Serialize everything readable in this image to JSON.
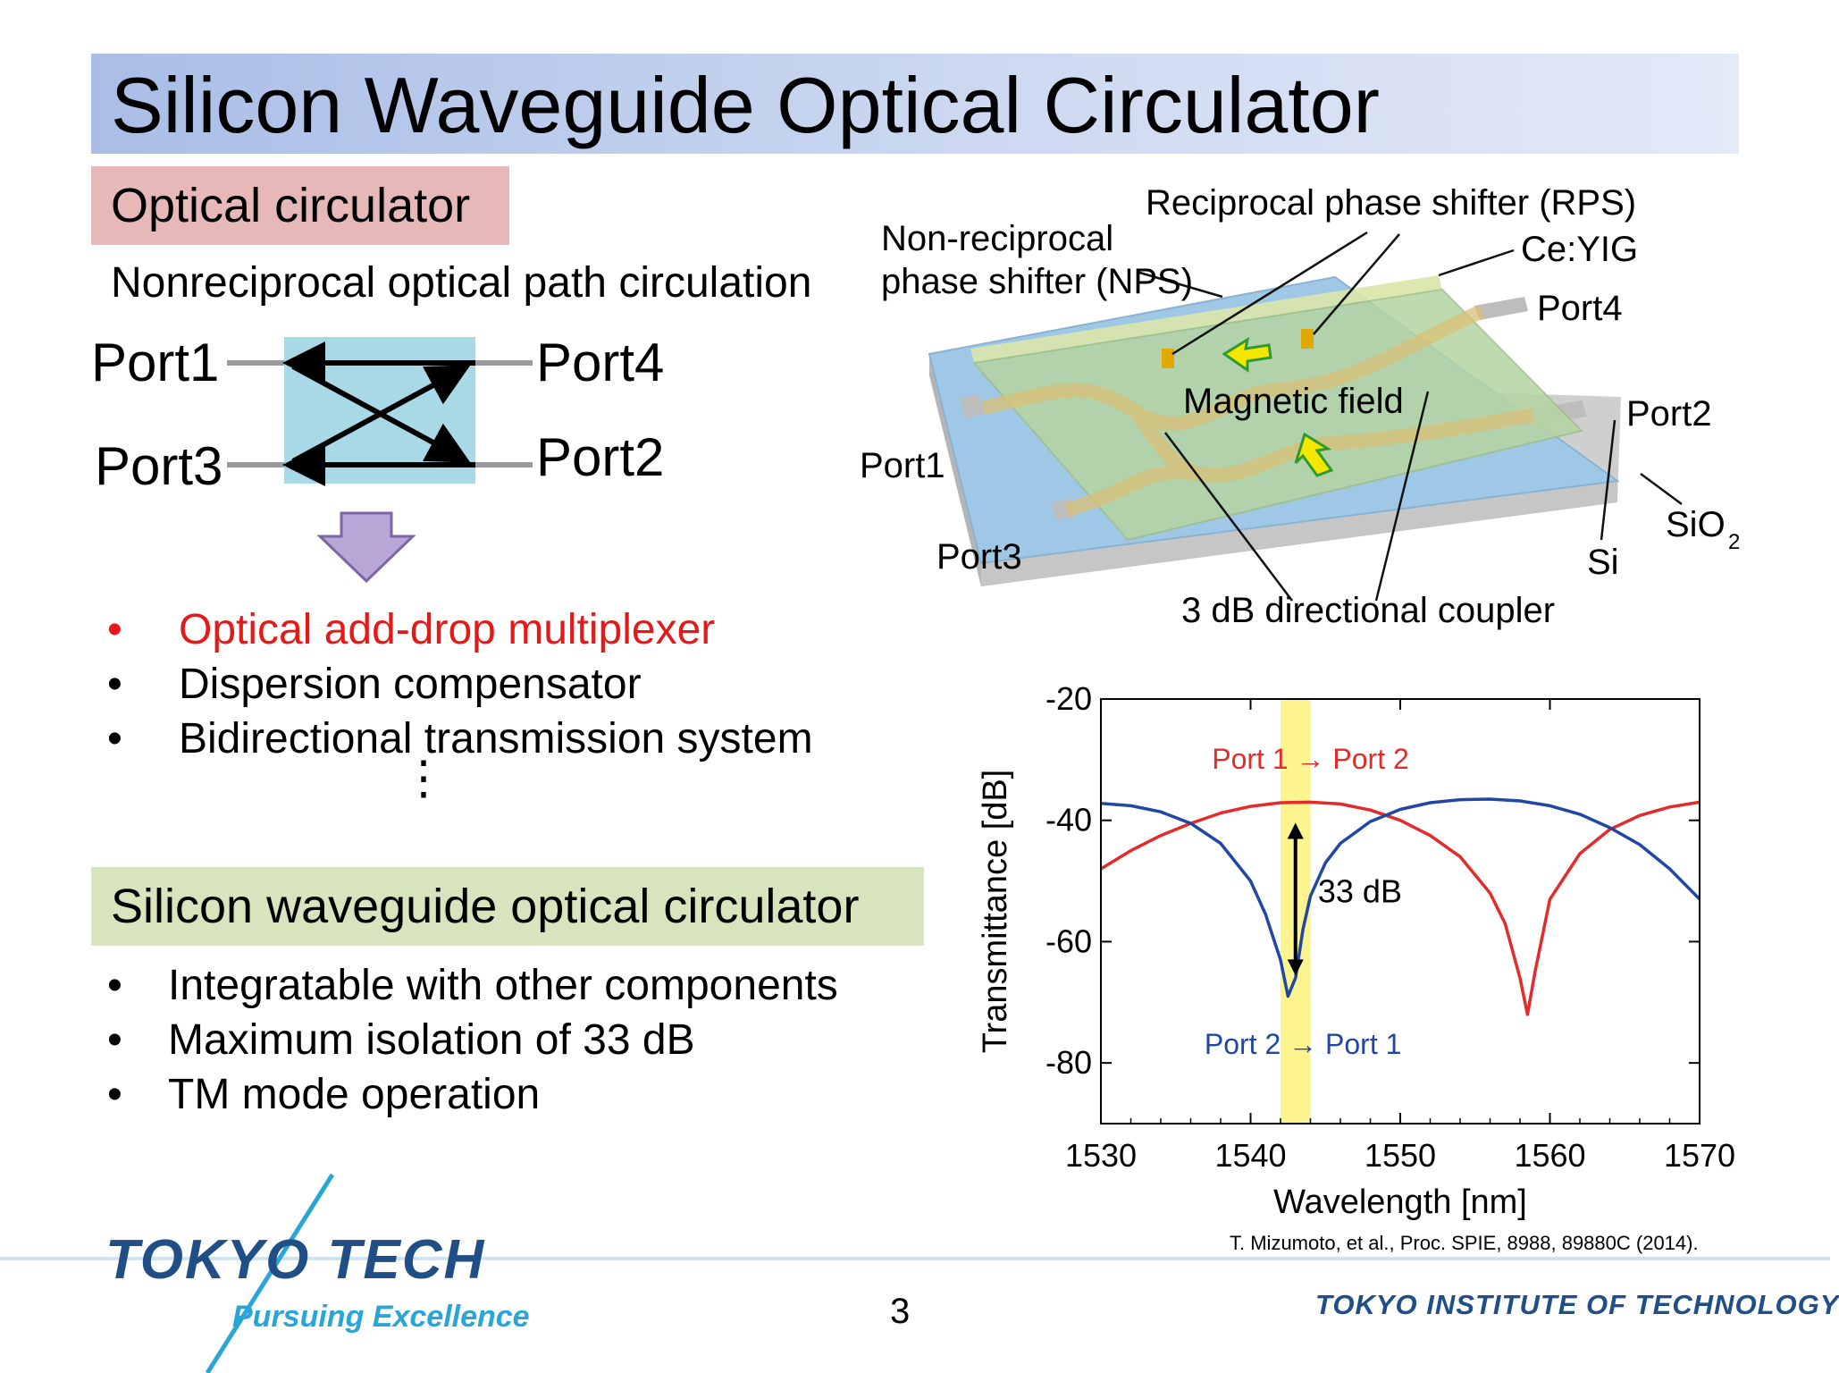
{
  "slide": {
    "title": "Silicon Waveguide Optical Circulator",
    "page_number": "3",
    "reference": "T. Mizumoto, et al., Proc. SPIE, 8988, 89880C (2014)."
  },
  "section1": {
    "heading": "Optical circulator",
    "subtitle": "Nonreciprocal optical path circulation",
    "ports": {
      "p1": "Port1",
      "p2": "Port2",
      "p3": "Port3",
      "p4": "Port4"
    },
    "applications": [
      {
        "text": "Optical add-drop multiplexer",
        "highlight": true
      },
      {
        "text": "Dispersion compensator",
        "highlight": false
      },
      {
        "text": "Bidirectional transmission system",
        "highlight": false
      }
    ],
    "bullet_symbol": "•",
    "ellipsis": "⋮"
  },
  "section2": {
    "heading": "Silicon waveguide optical circulator",
    "features": [
      "Integratable with other components",
      "Maximum isolation of 33 dB",
      "TM mode operation"
    ]
  },
  "device_diagram": {
    "labels": {
      "rps": "Reciprocal phase shifter (RPS)",
      "nps_line1": "Non-reciprocal",
      "nps_line2": "phase shifter (NPS)",
      "ceyig": "Ce:YIG",
      "port4": "Port4",
      "port2": "Port2",
      "port1": "Port1",
      "port3": "Port3",
      "magnetic_field": "Magnetic field",
      "coupler": "3 dB directional coupler",
      "si": "Si",
      "sio2": "SiO",
      "sio2_sub": "2"
    }
  },
  "chart_data": {
    "type": "line",
    "xlabel": "Wavelength [nm]",
    "ylabel": "Transmittance [dB]",
    "xlim": [
      1530,
      1570
    ],
    "ylim": [
      -90,
      -20
    ],
    "xticks": [
      1530,
      1540,
      1550,
      1560,
      1570
    ],
    "yticks": [
      -20,
      -40,
      -60,
      -80
    ],
    "highlight_band": [
      1542,
      1544
    ],
    "series": [
      {
        "name": "Port 1 → Port 2",
        "color": "#e22b2b",
        "x": [
          1530,
          1532,
          1534,
          1536,
          1538,
          1540,
          1542,
          1544,
          1546,
          1548,
          1550,
          1552,
          1554,
          1556,
          1557,
          1558,
          1558.5,
          1559,
          1560,
          1562,
          1564,
          1566,
          1568,
          1570
        ],
        "y": [
          -48,
          -45,
          -42.5,
          -40.5,
          -38.8,
          -37.7,
          -37.1,
          -37.0,
          -37.3,
          -38.3,
          -40,
          -42.5,
          -46,
          -52,
          -57,
          -66,
          -72,
          -65,
          -53,
          -45.5,
          -41.5,
          -39.2,
          -37.8,
          -37.0
        ]
      },
      {
        "name": "Port 2 → Port 1",
        "color": "#1f47a3",
        "x": [
          1530,
          1532,
          1534,
          1536,
          1538,
          1540,
          1541,
          1542,
          1542.5,
          1543,
          1543.5,
          1544,
          1545,
          1546,
          1548,
          1550,
          1552,
          1554,
          1556,
          1558,
          1560,
          1562,
          1564,
          1566,
          1568,
          1570
        ],
        "y": [
          -37.2,
          -37.6,
          -38.6,
          -40.5,
          -43.8,
          -50,
          -55.5,
          -63,
          -69,
          -66,
          -58,
          -52.5,
          -47,
          -43.8,
          -40.2,
          -38.2,
          -37.1,
          -36.6,
          -36.5,
          -36.8,
          -37.6,
          -39.0,
          -41.2,
          -44,
          -48,
          -53
        ]
      }
    ],
    "annotations": {
      "isolation": "33 dB",
      "label_red": "Port 1 → Port 2",
      "label_blue": "Port 2 → Port 1"
    }
  },
  "logo": {
    "name": "TOKYO TECH",
    "tagline": "Pursuing Excellence",
    "institute": "TOKYO INSTITUTE OF TECHNOLOGY"
  }
}
